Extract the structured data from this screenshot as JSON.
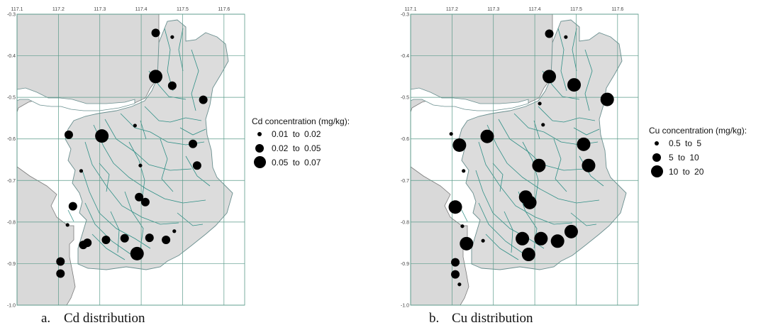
{
  "lon_ticks": [
    "117.1",
    "117.2",
    "117.3",
    "117.4",
    "117.5",
    "117.6"
  ],
  "lat_ticks": [
    "-0.3",
    "-0.4",
    "-0.5",
    "-0.6",
    "-0.7",
    "-0.8",
    "-0.9",
    "-1.0"
  ],
  "colors": {
    "land": "#d9d9d9",
    "channel": "#2f8f86",
    "grid": "#5a9a8a",
    "marker": "#000000"
  },
  "panels": [
    {
      "id": "a",
      "caption_letter": "a.",
      "caption_text": "Cd distribution",
      "legend_title": "Cd concentration (mg/kg):",
      "classes": [
        {
          "label": "0.01  to  0.02",
          "size": "small"
        },
        {
          "label": "0.02  to  0.05",
          "size": "medium"
        },
        {
          "label": "0.05  to  0.07",
          "size": "large"
        }
      ],
      "samples": [
        {
          "lon": 117.435,
          "lat": -0.345,
          "size": "medium"
        },
        {
          "lon": 117.475,
          "lat": -0.355,
          "size": "small"
        },
        {
          "lon": 117.435,
          "lat": -0.45,
          "size": "large"
        },
        {
          "lon": 117.475,
          "lat": -0.472,
          "size": "medium"
        },
        {
          "lon": 117.55,
          "lat": -0.506,
          "size": "medium"
        },
        {
          "lon": 117.225,
          "lat": -0.59,
          "size": "medium"
        },
        {
          "lon": 117.305,
          "lat": -0.593,
          "size": "large"
        },
        {
          "lon": 117.385,
          "lat": -0.568,
          "size": "small"
        },
        {
          "lon": 117.525,
          "lat": -0.612,
          "size": "medium"
        },
        {
          "lon": 117.535,
          "lat": -0.664,
          "size": "medium"
        },
        {
          "lon": 117.255,
          "lat": -0.677,
          "size": "small"
        },
        {
          "lon": 117.398,
          "lat": -0.664,
          "size": "small"
        },
        {
          "lon": 117.395,
          "lat": -0.74,
          "size": "medium"
        },
        {
          "lon": 117.41,
          "lat": -0.752,
          "size": "medium"
        },
        {
          "lon": 117.235,
          "lat": -0.762,
          "size": "medium"
        },
        {
          "lon": 117.222,
          "lat": -0.807,
          "size": "small"
        },
        {
          "lon": 117.48,
          "lat": -0.822,
          "size": "small"
        },
        {
          "lon": 117.36,
          "lat": -0.839,
          "size": "medium"
        },
        {
          "lon": 117.42,
          "lat": -0.838,
          "size": "medium"
        },
        {
          "lon": 117.46,
          "lat": -0.843,
          "size": "medium"
        },
        {
          "lon": 117.315,
          "lat": -0.843,
          "size": "medium"
        },
        {
          "lon": 117.27,
          "lat": -0.85,
          "size": "medium"
        },
        {
          "lon": 117.26,
          "lat": -0.855,
          "size": "medium"
        },
        {
          "lon": 117.39,
          "lat": -0.876,
          "size": "large"
        },
        {
          "lon": 117.205,
          "lat": -0.895,
          "size": "medium"
        },
        {
          "lon": 117.205,
          "lat": -0.924,
          "size": "medium"
        }
      ]
    },
    {
      "id": "b",
      "caption_letter": "b.",
      "caption_text": "Cu distribution",
      "legend_title": "Cu concentration (mg/kg):",
      "classes": [
        {
          "label": "0.5  to  5",
          "size": "small"
        },
        {
          "label": "5  to  10",
          "size": "medium"
        },
        {
          "label": "10  to  20",
          "size": "large"
        }
      ],
      "samples": [
        {
          "lon": 117.435,
          "lat": -0.347,
          "size": "medium"
        },
        {
          "lon": 117.475,
          "lat": -0.355,
          "size": "small"
        },
        {
          "lon": 117.435,
          "lat": -0.45,
          "size": "large"
        },
        {
          "lon": 117.495,
          "lat": -0.47,
          "size": "large"
        },
        {
          "lon": 117.575,
          "lat": -0.505,
          "size": "large"
        },
        {
          "lon": 117.412,
          "lat": -0.515,
          "size": "small"
        },
        {
          "lon": 117.198,
          "lat": -0.588,
          "size": "small"
        },
        {
          "lon": 117.285,
          "lat": -0.594,
          "size": "large"
        },
        {
          "lon": 117.42,
          "lat": -0.566,
          "size": "small"
        },
        {
          "lon": 117.518,
          "lat": -0.613,
          "size": "large"
        },
        {
          "lon": 117.218,
          "lat": -0.615,
          "size": "large"
        },
        {
          "lon": 117.41,
          "lat": -0.664,
          "size": "large"
        },
        {
          "lon": 117.53,
          "lat": -0.664,
          "size": "large"
        },
        {
          "lon": 117.228,
          "lat": -0.677,
          "size": "small"
        },
        {
          "lon": 117.378,
          "lat": -0.74,
          "size": "large"
        },
        {
          "lon": 117.388,
          "lat": -0.753,
          "size": "large"
        },
        {
          "lon": 117.208,
          "lat": -0.764,
          "size": "large"
        },
        {
          "lon": 117.225,
          "lat": -0.81,
          "size": "small"
        },
        {
          "lon": 117.488,
          "lat": -0.823,
          "size": "large"
        },
        {
          "lon": 117.37,
          "lat": -0.84,
          "size": "large"
        },
        {
          "lon": 117.415,
          "lat": -0.84,
          "size": "large"
        },
        {
          "lon": 117.455,
          "lat": -0.846,
          "size": "large"
        },
        {
          "lon": 117.275,
          "lat": -0.845,
          "size": "small"
        },
        {
          "lon": 117.235,
          "lat": -0.852,
          "size": "large"
        },
        {
          "lon": 117.385,
          "lat": -0.878,
          "size": "large"
        },
        {
          "lon": 117.208,
          "lat": -0.897,
          "size": "medium"
        },
        {
          "lon": 117.208,
          "lat": -0.926,
          "size": "medium"
        },
        {
          "lon": 117.218,
          "lat": -0.95,
          "size": "small"
        }
      ]
    }
  ]
}
